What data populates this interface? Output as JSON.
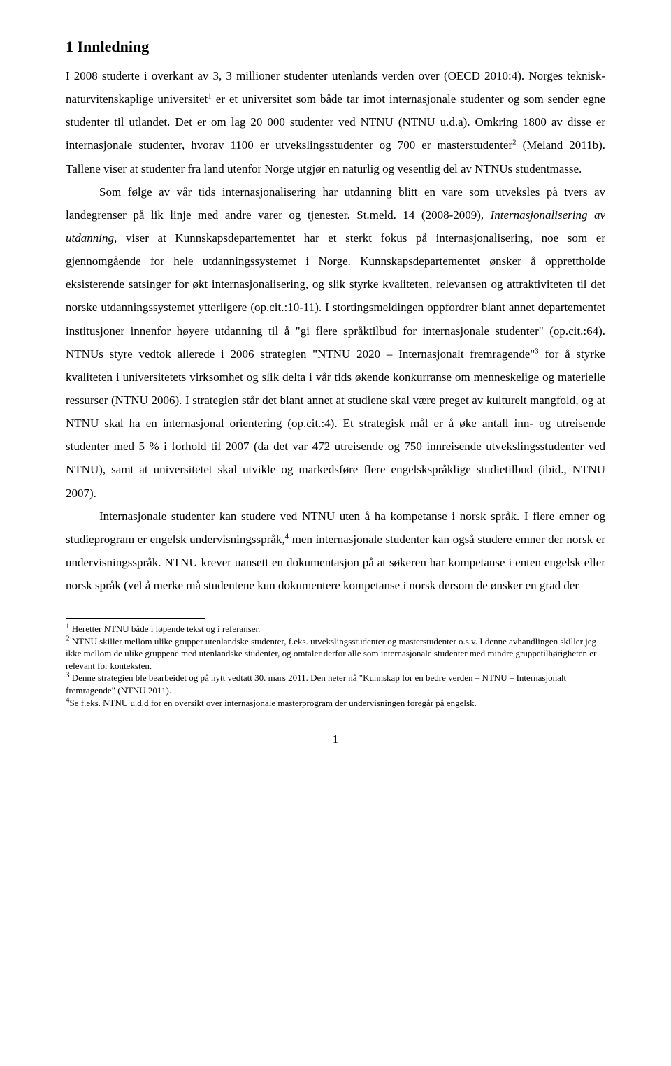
{
  "heading": "1 Innledning",
  "para1": "I 2008 studerte i overkant av 3, 3 millioner studenter utenlands verden over (OECD 2010:4). Norges teknisk-naturvitenskaplige universitet",
  "sup1": "1",
  "para1b": " er et universitet som både tar imot internasjonale studenter og som sender egne studenter til utlandet. Det er om lag 20 000 studenter ved NTNU (NTNU u.d.a). Omkring 1800 av disse er internasjonale studenter, hvorav 1100 er utvekslingsstudenter og 700 er masterstudenter",
  "sup2": "2",
  "para1c": " (Meland 2011b). Tallene viser at studenter fra land utenfor Norge utgjør en naturlig og vesentlig del av NTNUs studentmasse.",
  "para2a": "Som følge av vår tids internasjonalisering har utdanning blitt en vare som utveksles på tvers av landegrenser på lik linje med andre varer og tjenester. St.meld. 14 (2008-2009), ",
  "para2_italic": "Internasjonalisering av utdanning",
  "para2b": ", viser at Kunnskapsdepartementet har et sterkt fokus på internasjonalisering, noe som er gjennomgående for hele utdanningssystemet i Norge. Kunnskapsdepartementet ønsker å opprettholde eksisterende satsinger for økt internasjonalisering, og slik styrke kvaliteten, relevansen og attraktiviteten til det norske utdanningssystemet ytterligere (op.cit.:10-11). I stortingsmeldingen oppfordrer blant annet departementet institusjoner innenfor høyere utdanning til å \"gi flere språktilbud for internasjonale studenter\" (op.cit.:64). NTNUs styre vedtok allerede i 2006 strategien \"NTNU 2020 – Internasjonalt fremragende\"",
  "sup3": "3",
  "para2c": " for å styrke kvaliteten i universitetets virksomhet og slik delta i vår tids økende konkurranse om menneskelige og materielle ressurser (NTNU 2006). I strategien står det blant annet at studiene skal være preget av kulturelt mangfold, og at NTNU skal ha en internasjonal orientering (op.cit.:4). Et strategisk mål er å øke antall inn- og utreisende studenter med 5 % i forhold til 2007 (da det var 472 utreisende og 750 innreisende utvekslingsstudenter ved NTNU), samt at universitetet skal utvikle og markedsføre flere engelskspråklige studietilbud (ibid., NTNU 2007).",
  "para3a": "Internasjonale studenter kan studere ved NTNU uten å ha kompetanse i norsk språk. I flere emner og studieprogram er engelsk undervisningsspråk,",
  "sup4": "4",
  "para3b": " men internasjonale studenter kan også studere emner der norsk er undervisningsspråk. NTNU krever uansett en dokumentasjon på at søkeren har kompetanse i enten engelsk eller norsk språk (vel å merke må studentene kun dokumentere kompetanse i norsk dersom de ønsker en grad der",
  "fn1_sup": "1",
  "fn1": " Heretter NTNU både i løpende tekst og i referanser.",
  "fn2_sup": "2",
  "fn2": " NTNU skiller mellom ulike grupper utenlandske studenter, f.eks. utvekslingsstudenter og masterstudenter o.s.v. I denne avhandlingen skiller jeg ikke mellom de ulike gruppene med utenlandske studenter, og omtaler derfor alle som internasjonale studenter med mindre gruppetilhørigheten er relevant for konteksten.",
  "fn3_sup": "3",
  "fn3": " Denne strategien ble bearbeidet og på nytt vedtatt 30. mars 2011. Den heter nå \"Kunnskap for en bedre verden – NTNU – Internasjonalt fremragende\" (NTNU 2011).",
  "fn4_sup": "4",
  "fn4": "Se f.eks. NTNU u.d.d for en oversikt over internasjonale masterprogram der undervisningen foregår på engelsk.",
  "page_number": "1"
}
